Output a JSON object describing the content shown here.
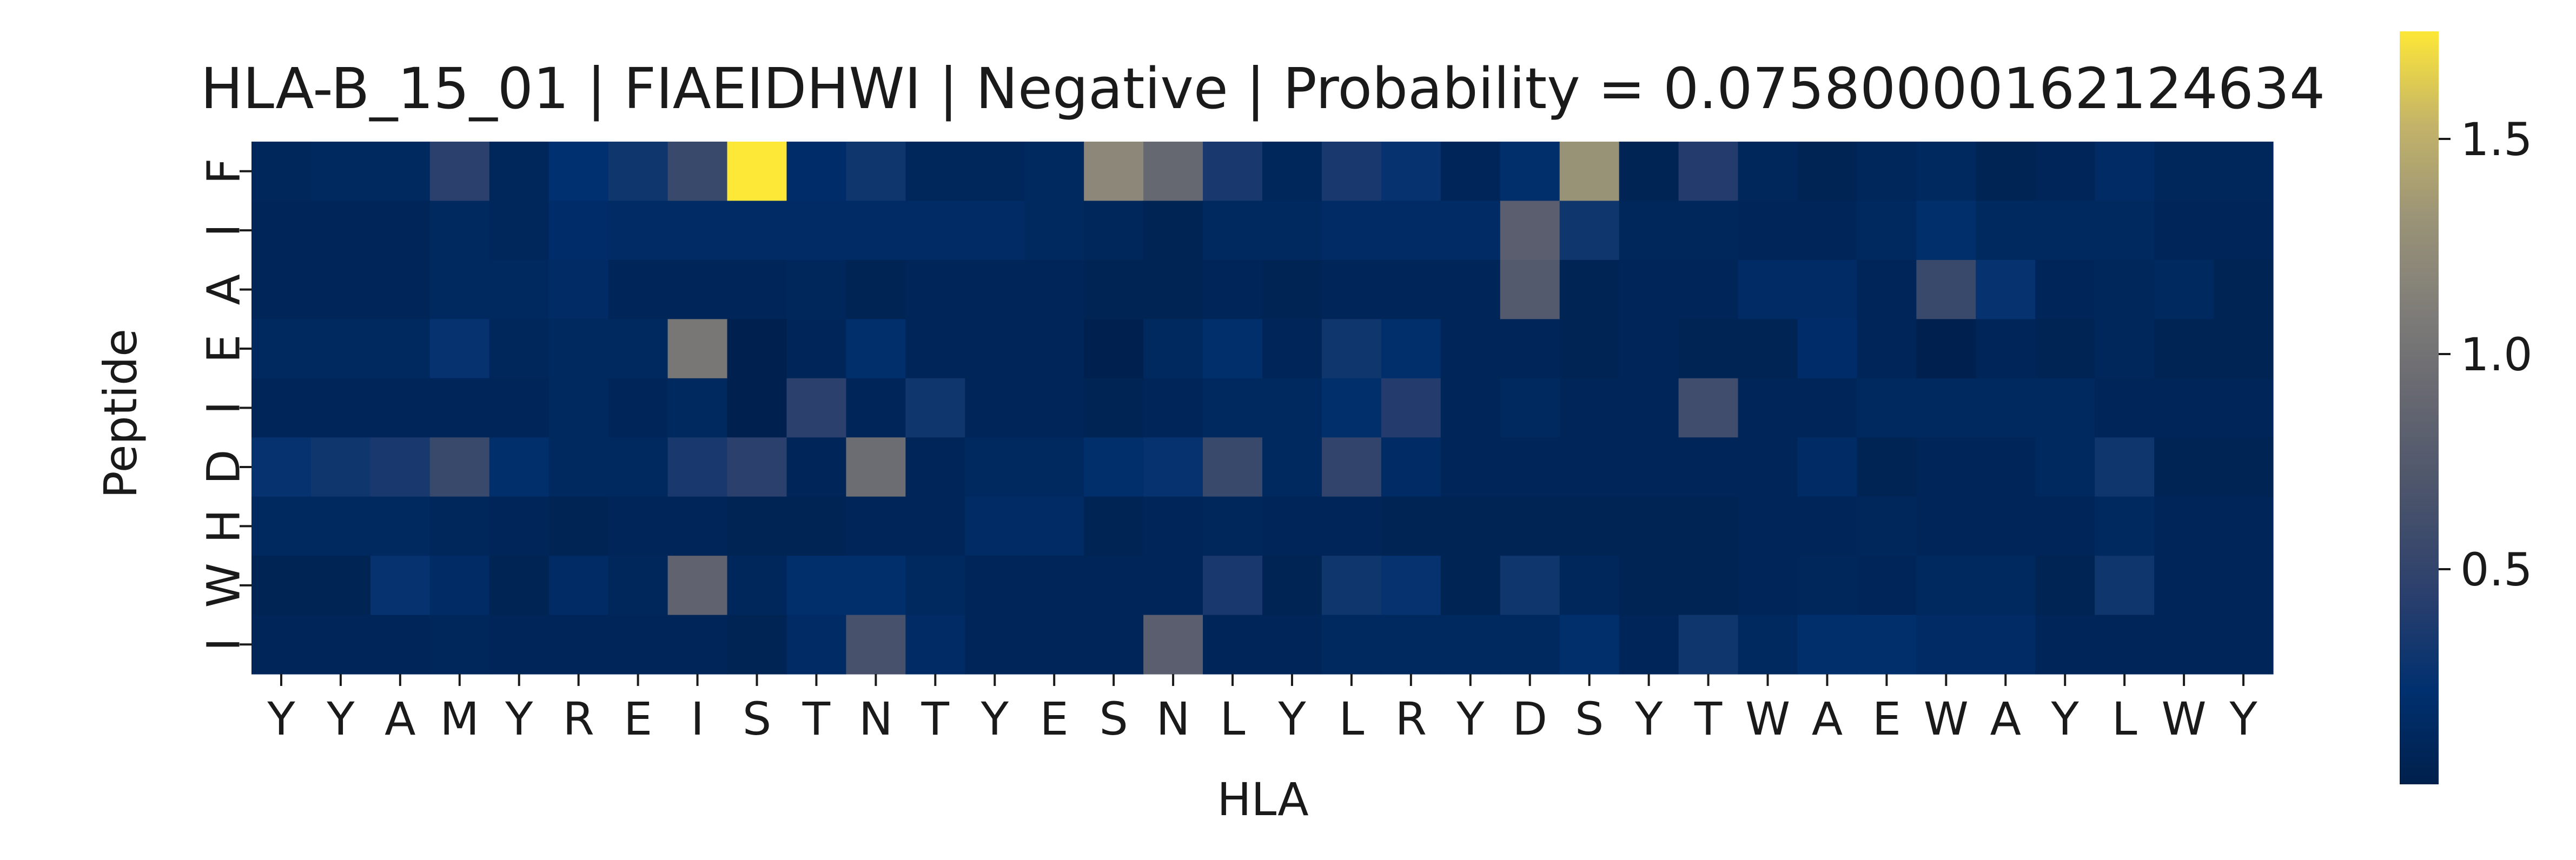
{
  "chart_data": {
    "type": "heatmap",
    "title": "HLA-B_15_01 | FIAEIDHWI | Negative | Probability = 0.07580000162124634",
    "xlabel": "HLA",
    "ylabel": "Peptide",
    "x_categories": [
      "Y",
      "Y",
      "A",
      "M",
      "Y",
      "R",
      "E",
      "I",
      "S",
      "T",
      "N",
      "T",
      "Y",
      "E",
      "S",
      "N",
      "L",
      "Y",
      "L",
      "R",
      "Y",
      "D",
      "S",
      "Y",
      "T",
      "W",
      "A",
      "E",
      "W",
      "A",
      "Y",
      "L",
      "W",
      "Y"
    ],
    "y_categories": [
      "F",
      "I",
      "A",
      "E",
      "I",
      "D",
      "H",
      "W",
      "I"
    ],
    "colormap": "cividis",
    "colorbar": {
      "min": 0.0,
      "max": 1.75,
      "ticks": [
        0.5,
        1.0,
        1.5
      ],
      "tick_labels": [
        "0.5",
        "1.0",
        "1.5"
      ]
    },
    "values": [
      [
        0.1,
        0.12,
        0.12,
        0.45,
        0.1,
        0.22,
        0.3,
        0.55,
        1.75,
        0.18,
        0.3,
        0.1,
        0.1,
        0.12,
        1.2,
        0.9,
        0.35,
        0.1,
        0.35,
        0.25,
        0.08,
        0.2,
        1.3,
        0.05,
        0.4,
        0.1,
        0.05,
        0.1,
        0.12,
        0.05,
        0.08,
        0.15,
        0.1,
        0.1
      ],
      [
        0.08,
        0.08,
        0.08,
        0.12,
        0.1,
        0.18,
        0.15,
        0.15,
        0.15,
        0.15,
        0.15,
        0.15,
        0.15,
        0.12,
        0.1,
        0.05,
        0.12,
        0.12,
        0.15,
        0.15,
        0.15,
        0.8,
        0.3,
        0.1,
        0.1,
        0.08,
        0.08,
        0.12,
        0.2,
        0.12,
        0.12,
        0.12,
        0.08,
        0.08
      ],
      [
        0.08,
        0.08,
        0.08,
        0.12,
        0.12,
        0.15,
        0.08,
        0.08,
        0.08,
        0.1,
        0.05,
        0.08,
        0.08,
        0.08,
        0.05,
        0.05,
        0.08,
        0.05,
        0.08,
        0.08,
        0.08,
        0.75,
        0.05,
        0.08,
        0.08,
        0.15,
        0.15,
        0.08,
        0.55,
        0.25,
        0.08,
        0.1,
        0.12,
        0.05
      ],
      [
        0.12,
        0.12,
        0.12,
        0.25,
        0.1,
        0.12,
        0.12,
        1.05,
        0.02,
        0.08,
        0.2,
        0.08,
        0.08,
        0.08,
        0.02,
        0.12,
        0.2,
        0.08,
        0.3,
        0.2,
        0.08,
        0.08,
        0.05,
        0.08,
        0.05,
        0.05,
        0.18,
        0.08,
        0.02,
        0.08,
        0.05,
        0.1,
        0.05,
        0.05
      ],
      [
        0.08,
        0.08,
        0.08,
        0.08,
        0.08,
        0.12,
        0.08,
        0.12,
        0.02,
        0.45,
        0.08,
        0.3,
        0.08,
        0.08,
        0.05,
        0.08,
        0.12,
        0.12,
        0.2,
        0.4,
        0.08,
        0.12,
        0.08,
        0.08,
        0.6,
        0.08,
        0.08,
        0.12,
        0.12,
        0.12,
        0.12,
        0.08,
        0.08,
        0.08
      ],
      [
        0.25,
        0.3,
        0.35,
        0.55,
        0.2,
        0.12,
        0.12,
        0.35,
        0.45,
        0.08,
        0.95,
        0.08,
        0.12,
        0.12,
        0.2,
        0.25,
        0.55,
        0.12,
        0.5,
        0.15,
        0.08,
        0.08,
        0.08,
        0.08,
        0.08,
        0.08,
        0.15,
        0.05,
        0.08,
        0.08,
        0.12,
        0.3,
        0.05,
        0.05
      ],
      [
        0.12,
        0.12,
        0.12,
        0.1,
        0.08,
        0.05,
        0.08,
        0.08,
        0.05,
        0.05,
        0.08,
        0.08,
        0.15,
        0.15,
        0.05,
        0.08,
        0.1,
        0.08,
        0.08,
        0.05,
        0.05,
        0.05,
        0.05,
        0.05,
        0.05,
        0.08,
        0.08,
        0.1,
        0.08,
        0.08,
        0.08,
        0.12,
        0.08,
        0.08
      ],
      [
        0.05,
        0.05,
        0.25,
        0.15,
        0.05,
        0.15,
        0.1,
        0.85,
        0.1,
        0.2,
        0.2,
        0.12,
        0.08,
        0.08,
        0.08,
        0.08,
        0.35,
        0.05,
        0.3,
        0.25,
        0.05,
        0.3,
        0.1,
        0.05,
        0.05,
        0.08,
        0.1,
        0.08,
        0.12,
        0.12,
        0.05,
        0.3,
        0.08,
        0.08
      ],
      [
        0.08,
        0.08,
        0.08,
        0.1,
        0.08,
        0.08,
        0.08,
        0.08,
        0.05,
        0.15,
        0.65,
        0.15,
        0.08,
        0.08,
        0.08,
        0.8,
        0.08,
        0.08,
        0.12,
        0.12,
        0.12,
        0.12,
        0.2,
        0.08,
        0.3,
        0.12,
        0.2,
        0.2,
        0.15,
        0.15,
        0.08,
        0.08,
        0.08,
        0.08
      ]
    ]
  }
}
